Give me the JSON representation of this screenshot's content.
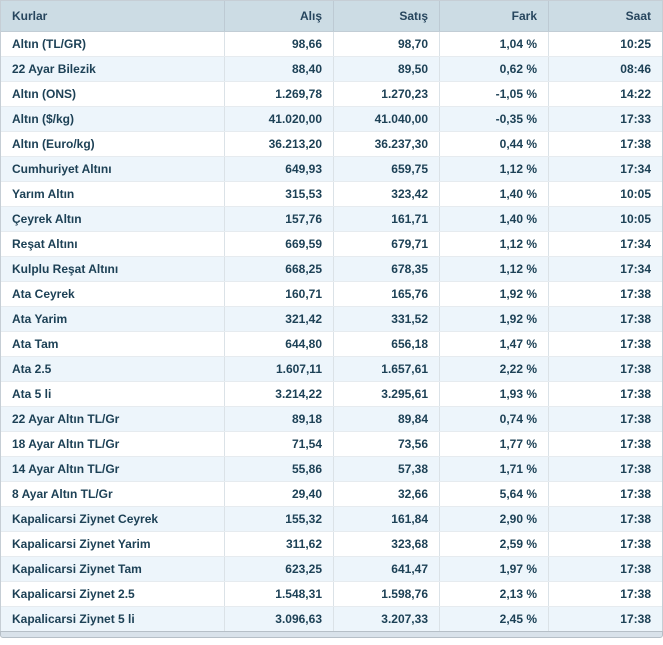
{
  "table": {
    "columns": [
      {
        "key": "name",
        "label": "Kurlar",
        "align": "left"
      },
      {
        "key": "buy",
        "label": "Alış",
        "align": "right"
      },
      {
        "key": "sell",
        "label": "Satış",
        "align": "right"
      },
      {
        "key": "change",
        "label": "Fark",
        "align": "right"
      },
      {
        "key": "time",
        "label": "Saat",
        "align": "right"
      }
    ],
    "rows": [
      {
        "name": "Altın (TL/GR)",
        "buy": "98,66",
        "sell": "98,70",
        "change": "1,04 %",
        "time": "10:25"
      },
      {
        "name": "22 Ayar Bilezik",
        "buy": "88,40",
        "sell": "89,50",
        "change": "0,62 %",
        "time": "08:46"
      },
      {
        "name": "Altın (ONS)",
        "buy": "1.269,78",
        "sell": "1.270,23",
        "change": "-1,05 %",
        "time": "14:22"
      },
      {
        "name": "Altın ($/kg)",
        "buy": "41.020,00",
        "sell": "41.040,00",
        "change": "-0,35 %",
        "time": "17:33"
      },
      {
        "name": "Altın (Euro/kg)",
        "buy": "36.213,20",
        "sell": "36.237,30",
        "change": "0,44 %",
        "time": "17:38"
      },
      {
        "name": "Cumhuriyet Altını",
        "buy": "649,93",
        "sell": "659,75",
        "change": "1,12 %",
        "time": "17:34"
      },
      {
        "name": "Yarım Altın",
        "buy": "315,53",
        "sell": "323,42",
        "change": "1,40 %",
        "time": "10:05"
      },
      {
        "name": "Çeyrek Altın",
        "buy": "157,76",
        "sell": "161,71",
        "change": "1,40 %",
        "time": "10:05"
      },
      {
        "name": "Reşat Altını",
        "buy": "669,59",
        "sell": "679,71",
        "change": "1,12 %",
        "time": "17:34"
      },
      {
        "name": "Kulplu Reşat Altını",
        "buy": "668,25",
        "sell": "678,35",
        "change": "1,12 %",
        "time": "17:34"
      },
      {
        "name": "Ata Ceyrek",
        "buy": "160,71",
        "sell": "165,76",
        "change": "1,92 %",
        "time": "17:38"
      },
      {
        "name": "Ata Yarim",
        "buy": "321,42",
        "sell": "331,52",
        "change": "1,92 %",
        "time": "17:38"
      },
      {
        "name": "Ata Tam",
        "buy": "644,80",
        "sell": "656,18",
        "change": "1,47 %",
        "time": "17:38"
      },
      {
        "name": "Ata 2.5",
        "buy": "1.607,11",
        "sell": "1.657,61",
        "change": "2,22 %",
        "time": "17:38"
      },
      {
        "name": "Ata 5 li",
        "buy": "3.214,22",
        "sell": "3.295,61",
        "change": "1,93 %",
        "time": "17:38"
      },
      {
        "name": "22 Ayar Altın TL/Gr",
        "buy": "89,18",
        "sell": "89,84",
        "change": "0,74 %",
        "time": "17:38"
      },
      {
        "name": "18 Ayar Altın TL/Gr",
        "buy": "71,54",
        "sell": "73,56",
        "change": "1,77 %",
        "time": "17:38"
      },
      {
        "name": "14 Ayar Altın TL/Gr",
        "buy": "55,86",
        "sell": "57,38",
        "change": "1,71 %",
        "time": "17:38"
      },
      {
        "name": "8 Ayar Altın TL/Gr",
        "buy": "29,40",
        "sell": "32,66",
        "change": "5,64 %",
        "time": "17:38"
      },
      {
        "name": "Kapalicarsi Ziynet Ceyrek",
        "buy": "155,32",
        "sell": "161,84",
        "change": "2,90 %",
        "time": "17:38"
      },
      {
        "name": "Kapalicarsi Ziynet Yarim",
        "buy": "311,62",
        "sell": "323,68",
        "change": "2,59 %",
        "time": "17:38"
      },
      {
        "name": "Kapalicarsi Ziynet Tam",
        "buy": "623,25",
        "sell": "641,47",
        "change": "1,97 %",
        "time": "17:38"
      },
      {
        "name": "Kapalicarsi Ziynet 2.5",
        "buy": "1.548,31",
        "sell": "1.598,76",
        "change": "2,13 %",
        "time": "17:38"
      },
      {
        "name": "Kapalicarsi Ziynet 5 li",
        "buy": "3.096,63",
        "sell": "3.207,33",
        "change": "2,45 %",
        "time": "17:38"
      }
    ]
  },
  "colors": {
    "header_bg": "#ccdce4",
    "header_text": "#27465e",
    "header_border": "#c2cdd5",
    "header_cell_border": "#bdcad3",
    "text": "#1d4156",
    "row_bg": "#ffffff",
    "row_alt_bg": "#edf5fb",
    "row_border": "#e6ebef",
    "cell_border": "#dbe2e7",
    "outer_border": "#c6ced5",
    "footer_bg": "#d9e2ea",
    "footer_border": "#b6bfc7"
  }
}
